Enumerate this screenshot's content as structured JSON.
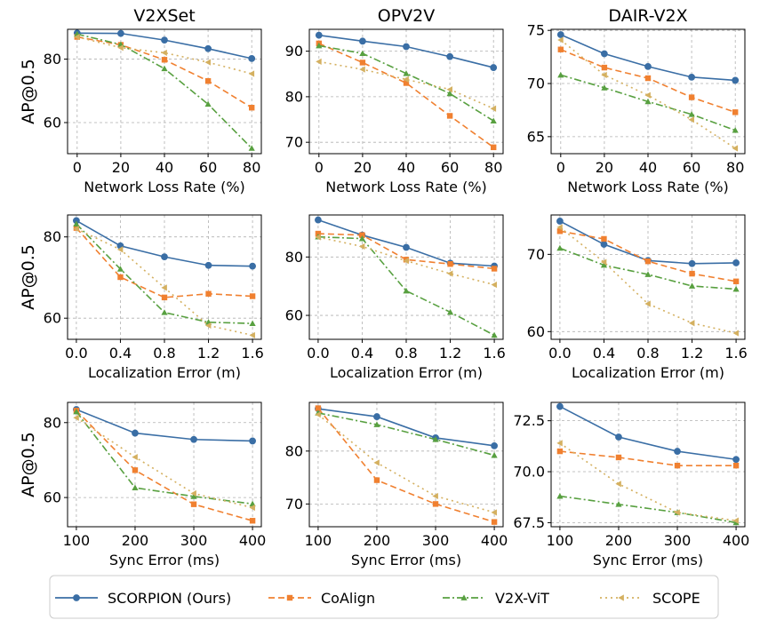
{
  "legend": {
    "entries": [
      {
        "label": "SCORPION (Ours)",
        "color": "#3a6ea5",
        "marker": "circle",
        "dash": "solid"
      },
      {
        "label": "CoAlign",
        "color": "#f08030",
        "marker": "square",
        "dash": "dashed"
      },
      {
        "label": "V2X-ViT",
        "color": "#58a040",
        "marker": "triangle-up",
        "dash": "dashdot"
      },
      {
        "label": "SCOPE",
        "color": "#d4b060",
        "marker": "triangle-left",
        "dash": "dotted"
      }
    ]
  },
  "chart_data": [
    {
      "type": "line",
      "row": 0,
      "col": 0,
      "title": "V2XSet",
      "xlabel": "Network Loss Rate (%)",
      "ylabel": "AP@0.5",
      "x": [
        0,
        20,
        40,
        60,
        80
      ],
      "xticks": [
        0,
        20,
        40,
        60,
        80
      ],
      "xtick_labels": [
        "0",
        "20",
        "40",
        "60",
        "80"
      ],
      "xlim": [
        -4.4,
        84.4
      ],
      "yticks": [
        60,
        80
      ],
      "ytick_labels": [
        "60",
        "80"
      ],
      "ylim": [
        50.2,
        89.4
      ],
      "series": [
        {
          "name": "SCORPION (Ours)",
          "values": [
            88.2,
            88.1,
            86.0,
            83.3,
            80.2
          ]
        },
        {
          "name": "CoAlign",
          "values": [
            87.0,
            84.5,
            79.8,
            73.1,
            64.7
          ]
        },
        {
          "name": "V2X-ViT",
          "values": [
            87.9,
            84.6,
            77.0,
            65.8,
            51.9
          ]
        },
        {
          "name": "SCOPE",
          "values": [
            87.0,
            83.6,
            82.0,
            79.0,
            75.4
          ]
        }
      ]
    },
    {
      "type": "line",
      "row": 0,
      "col": 1,
      "title": "OPV2V",
      "xlabel": "Network Loss Rate (%)",
      "ylabel": "",
      "x": [
        0,
        20,
        40,
        60,
        80
      ],
      "xticks": [
        0,
        20,
        40,
        60,
        80
      ],
      "xtick_labels": [
        "0",
        "20",
        "40",
        "60",
        "80"
      ],
      "xlim": [
        -4.4,
        84.4
      ],
      "yticks": [
        70,
        80,
        90
      ],
      "ytick_labels": [
        "70",
        "80",
        "90"
      ],
      "ylim": [
        67.5,
        94.8
      ],
      "series": [
        {
          "name": "SCORPION (Ours)",
          "values": [
            93.5,
            92.2,
            91.0,
            88.8,
            86.4
          ]
        },
        {
          "name": "CoAlign",
          "values": [
            91.7,
            87.5,
            83.0,
            75.8,
            68.9
          ]
        },
        {
          "name": "V2X-ViT",
          "values": [
            91.2,
            89.5,
            85.1,
            80.7,
            74.7
          ]
        },
        {
          "name": "SCOPE",
          "values": [
            87.7,
            86.0,
            83.8,
            81.6,
            77.4
          ]
        }
      ]
    },
    {
      "type": "line",
      "row": 0,
      "col": 2,
      "title": "DAIR-V2X",
      "xlabel": "Network Loss Rate (%)",
      "ylabel": "",
      "x": [
        0,
        20,
        40,
        60,
        80
      ],
      "xticks": [
        0,
        20,
        40,
        60,
        80
      ],
      "xtick_labels": [
        "0",
        "20",
        "40",
        "60",
        "80"
      ],
      "xlim": [
        -4.4,
        84.4
      ],
      "yticks": [
        65,
        70,
        75
      ],
      "ytick_labels": [
        "65",
        "70",
        "75"
      ],
      "ylim": [
        63.4,
        75.1
      ],
      "series": [
        {
          "name": "SCORPION (Ours)",
          "values": [
            74.6,
            72.8,
            71.6,
            70.6,
            70.3
          ]
        },
        {
          "name": "CoAlign",
          "values": [
            73.2,
            71.5,
            70.5,
            68.7,
            67.3
          ]
        },
        {
          "name": "V2X-ViT",
          "values": [
            70.8,
            69.6,
            68.3,
            67.1,
            65.6
          ]
        },
        {
          "name": "SCOPE",
          "values": [
            74.1,
            70.8,
            68.9,
            66.6,
            63.9
          ]
        }
      ]
    },
    {
      "type": "line",
      "row": 1,
      "col": 0,
      "title": "",
      "xlabel": "Localization Error (m)",
      "ylabel": "AP@0.5",
      "x": [
        0.0,
        0.4,
        0.8,
        1.2,
        1.6
      ],
      "xticks": [
        0.0,
        0.4,
        0.8,
        1.2,
        1.6
      ],
      "xtick_labels": [
        "0.0",
        "0.4",
        "0.8",
        "1.2",
        "1.6"
      ],
      "xlim": [
        -0.08,
        1.68
      ],
      "yticks": [
        60,
        80
      ],
      "ytick_labels": [
        "60",
        "80"
      ],
      "ylim": [
        54.8,
        85.4
      ],
      "series": [
        {
          "name": "SCORPION (Ours)",
          "values": [
            84.0,
            77.8,
            75.1,
            73.0,
            72.8
          ]
        },
        {
          "name": "CoAlign",
          "values": [
            82.2,
            70.1,
            65.1,
            66.0,
            65.4
          ]
        },
        {
          "name": "V2X-ViT",
          "values": [
            83.2,
            72.1,
            61.4,
            59.0,
            58.7
          ]
        },
        {
          "name": "SCOPE",
          "values": [
            82.0,
            76.9,
            67.5,
            58.2,
            55.8
          ]
        }
      ]
    },
    {
      "type": "line",
      "row": 1,
      "col": 1,
      "title": "",
      "xlabel": "Localization Error (m)",
      "ylabel": "",
      "x": [
        0.0,
        0.4,
        0.8,
        1.2,
        1.6
      ],
      "xticks": [
        0.0,
        0.4,
        0.8,
        1.2,
        1.6
      ],
      "xtick_labels": [
        "0.0",
        "0.4",
        "0.8",
        "1.2",
        "1.6"
      ],
      "xlim": [
        -0.08,
        1.68
      ],
      "yticks": [
        60,
        80
      ],
      "ytick_labels": [
        "60",
        "80"
      ],
      "ylim": [
        51.8,
        94.4
      ],
      "series": [
        {
          "name": "SCORPION (Ours)",
          "values": [
            92.7,
            87.5,
            83.3,
            77.9,
            76.9
          ]
        },
        {
          "name": "CoAlign",
          "values": [
            88.0,
            87.5,
            79.1,
            77.6,
            76.0
          ]
        },
        {
          "name": "V2X-ViT",
          "values": [
            86.9,
            86.3,
            68.4,
            61.1,
            53.2
          ]
        },
        {
          "name": "SCOPE",
          "values": [
            86.8,
            83.6,
            78.7,
            74.3,
            70.5
          ]
        }
      ]
    },
    {
      "type": "line",
      "row": 1,
      "col": 2,
      "title": "",
      "xlabel": "Localization Error (m)",
      "ylabel": "",
      "x": [
        0.0,
        0.4,
        0.8,
        1.2,
        1.6
      ],
      "xticks": [
        0.0,
        0.4,
        0.8,
        1.2,
        1.6
      ],
      "xtick_labels": [
        "0.0",
        "0.4",
        "0.8",
        "1.2",
        "1.6"
      ],
      "xlim": [
        -0.08,
        1.68
      ],
      "yticks": [
        60,
        70
      ],
      "ytick_labels": [
        "60",
        "70"
      ],
      "ylim": [
        59.0,
        75.1
      ],
      "series": [
        {
          "name": "SCORPION (Ours)",
          "values": [
            74.3,
            71.3,
            69.2,
            68.8,
            68.9
          ]
        },
        {
          "name": "CoAlign",
          "values": [
            73.0,
            72.0,
            69.1,
            67.5,
            66.5
          ]
        },
        {
          "name": "V2X-ViT",
          "values": [
            70.8,
            68.6,
            67.4,
            65.9,
            65.5
          ]
        },
        {
          "name": "SCOPE",
          "values": [
            73.5,
            69.0,
            63.6,
            61.1,
            59.8
          ]
        }
      ]
    },
    {
      "type": "line",
      "row": 2,
      "col": 0,
      "title": "",
      "xlabel": "Sync Error (ms)",
      "ylabel": "AP@0.5",
      "x": [
        100,
        200,
        300,
        400
      ],
      "xticks": [
        100,
        200,
        300,
        400
      ],
      "xtick_labels": [
        "100",
        "200",
        "300",
        "400"
      ],
      "xlim": [
        85,
        415
      ],
      "yticks": [
        60,
        80
      ],
      "ytick_labels": [
        "60",
        "80"
      ],
      "ylim": [
        52.2,
        85.4
      ],
      "series": [
        {
          "name": "SCORPION (Ours)",
          "values": [
            83.5,
            77.2,
            75.5,
            75.1
          ]
        },
        {
          "name": "CoAlign",
          "values": [
            83.2,
            67.3,
            58.2,
            53.8
          ]
        },
        {
          "name": "V2X-ViT",
          "values": [
            82.9,
            62.6,
            60.3,
            58.3
          ]
        },
        {
          "name": "SCOPE",
          "values": [
            81.3,
            70.8,
            61.1,
            57.3
          ]
        }
      ]
    },
    {
      "type": "line",
      "row": 2,
      "col": 1,
      "title": "",
      "xlabel": "Sync Error (ms)",
      "ylabel": "",
      "x": [
        100,
        200,
        300,
        400
      ],
      "xticks": [
        100,
        200,
        300,
        400
      ],
      "xtick_labels": [
        "100",
        "200",
        "300",
        "400"
      ],
      "xlim": [
        85,
        415
      ],
      "yticks": [
        70,
        80
      ],
      "ytick_labels": [
        "70",
        "80"
      ],
      "ylim": [
        65.7,
        89.2
      ],
      "series": [
        {
          "name": "SCORPION (Ours)",
          "values": [
            88.0,
            86.5,
            82.5,
            81.0
          ]
        },
        {
          "name": "CoAlign",
          "values": [
            88.1,
            74.5,
            70.0,
            66.6
          ]
        },
        {
          "name": "V2X-ViT",
          "values": [
            87.2,
            85.0,
            82.2,
            79.2
          ]
        },
        {
          "name": "SCOPE",
          "values": [
            86.9,
            77.8,
            71.5,
            68.4
          ]
        }
      ]
    },
    {
      "type": "line",
      "row": 2,
      "col": 2,
      "title": "",
      "xlabel": "Sync Error (ms)",
      "ylabel": "",
      "x": [
        100,
        200,
        300,
        400
      ],
      "xticks": [
        100,
        200,
        300,
        400
      ],
      "xtick_labels": [
        "100",
        "200",
        "300",
        "400"
      ],
      "xlim": [
        85,
        415
      ],
      "yticks": [
        67.5,
        70.0,
        72.5
      ],
      "ytick_labels": [
        "67.5",
        "70.0",
        "72.5"
      ],
      "ylim": [
        67.3,
        73.4
      ],
      "series": [
        {
          "name": "SCORPION (Ours)",
          "values": [
            73.2,
            71.7,
            71.0,
            70.6
          ]
        },
        {
          "name": "CoAlign",
          "values": [
            71.0,
            70.7,
            70.3,
            70.3
          ]
        },
        {
          "name": "V2X-ViT",
          "values": [
            68.8,
            68.4,
            68.0,
            67.5
          ]
        },
        {
          "name": "SCOPE",
          "values": [
            71.4,
            69.4,
            68.0,
            67.6
          ]
        }
      ]
    }
  ]
}
